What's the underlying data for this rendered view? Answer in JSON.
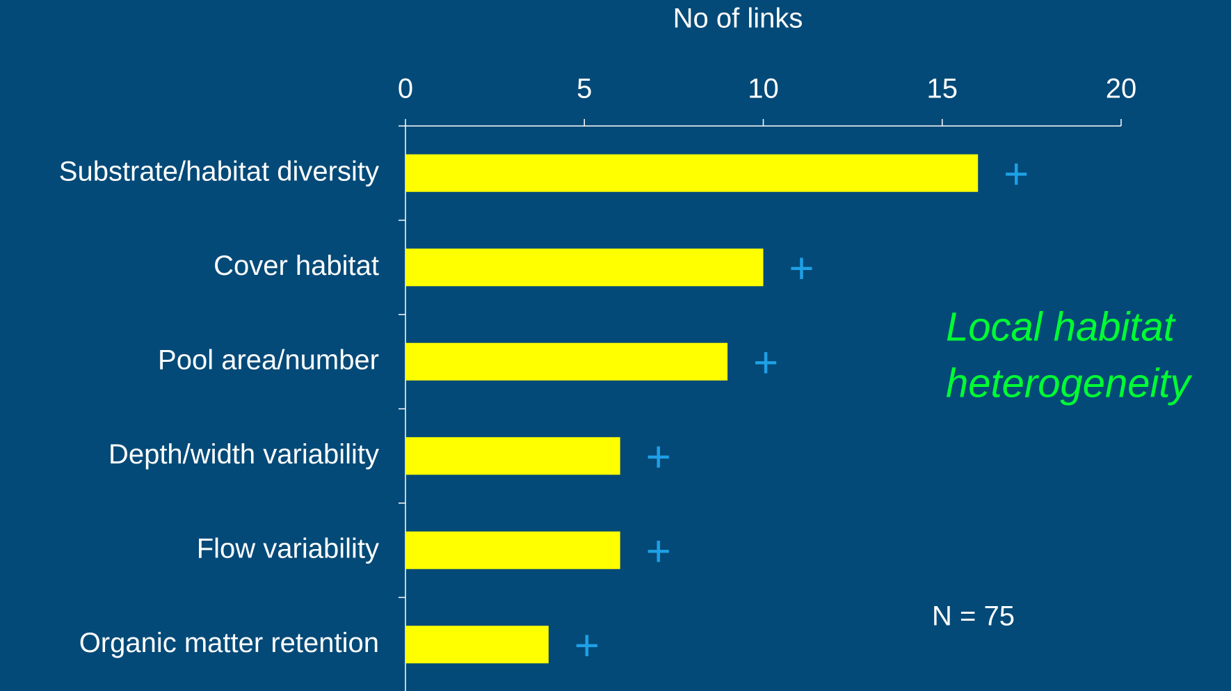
{
  "chart_data": {
    "type": "bar",
    "orientation": "horizontal",
    "x_label": "No of links",
    "categories": [
      "Substrate/habitat diversity",
      "Cover habitat",
      "Pool area/number",
      "Depth/width variability",
      "Flow variability",
      "Organic matter retention"
    ],
    "values": [
      16,
      10,
      9,
      6,
      6,
      4
    ],
    "bar_labels": [
      "+",
      "+",
      "+",
      "+",
      "+",
      "+"
    ],
    "color": "#ffff00",
    "bar_label_color": "#1ea0e6",
    "xlim": [
      0,
      20
    ],
    "xticks": [
      0,
      5,
      10,
      15,
      20
    ],
    "annotations": [
      {
        "lines": [
          "Local habitat",
          "heterogeneity"
        ],
        "color": "#00ff33"
      },
      {
        "lines": [
          "N = 75"
        ],
        "color": "#ffffff"
      }
    ]
  }
}
